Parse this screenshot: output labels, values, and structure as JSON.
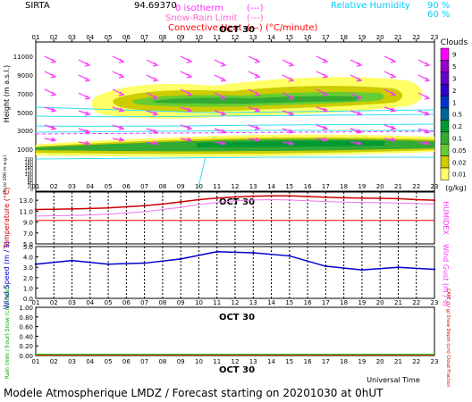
{
  "header": {
    "station": "SIRTA",
    "id": "94.69370",
    "legend_lines": [
      {
        "label": "0 isotherm",
        "sample": "(---)",
        "color": "#ff33ff"
      },
      {
        "label": "Snow-Rain Limit",
        "sample": "(---)",
        "color": "#ff66cc"
      },
      {
        "label": "Convective Heat",
        "sample": "(—) (°C/minute)",
        "color": "#ff0000"
      }
    ],
    "humidity": {
      "label": "Relative Humidity",
      "v1": "90 %",
      "v2": "60 %",
      "color": "#00ccff"
    }
  },
  "footer": "Modele Atmospherique LMDZ / Forecast starting on 20201030 at 0hUT",
  "hours": [
    "01",
    "02",
    "03",
    "04",
    "05",
    "06",
    "07",
    "08",
    "09",
    "10",
    "11",
    "12",
    "13",
    "14",
    "15",
    "16",
    "17",
    "18",
    "19",
    "20",
    "21",
    "22",
    "23"
  ],
  "date_label": "OCT 30",
  "x_axis_title": "Universal Time",
  "clouds": {
    "title": "Clouds",
    "unit": "(g/kg)",
    "levels": [
      "9",
      "5",
      "3",
      "2",
      "1",
      "0.5",
      "0.2",
      "0.1",
      "0.05",
      "0.02",
      "0.01"
    ],
    "colors": [
      "#ff00ff",
      "#9900cc",
      "#6600cc",
      "#3300cc",
      "#0033cc",
      "#006699",
      "#009933",
      "#33aa33",
      "#66cc33",
      "#cccc00",
      "#ffff66"
    ]
  },
  "chart_data": [
    {
      "type": "area",
      "name": "cloud-cross-section",
      "ylabel": "Height (m a.s.l.)",
      "ylabel2": "Up to 200 m a.g.l.",
      "yticks_upper": [
        "11000",
        "9000",
        "7000",
        "5000",
        "3000",
        "1000"
      ],
      "yticks_lower": [
        "200",
        "180",
        "160",
        "140",
        "120",
        "100",
        "80",
        "60",
        "40",
        "20",
        "0"
      ],
      "xlim": [
        1,
        23
      ],
      "layers": [
        {
          "name": "upper-cloud",
          "base_m": 4500,
          "top_m": 8000,
          "x": [
            8,
            12.5,
            17,
            21.5,
            23
          ],
          "peak_gkg": 0.1
        },
        {
          "name": "low-cloud",
          "base_m": 300,
          "top_m": 1500,
          "x": [
            1,
            23
          ],
          "peak_gkg": 0.1
        }
      ],
      "isotherm_0_m": 3000
    },
    {
      "type": "line",
      "name": "temperature",
      "ylabel": "Temperature (°C)",
      "ylabel_right": "HUMIDEX",
      "yticks": [
        "13.0",
        "11.0",
        "9.0",
        "7.0",
        "5.0"
      ],
      "ylim": [
        5.0,
        14.5
      ],
      "x": [
        1,
        2,
        3,
        4,
        5,
        6,
        7,
        8,
        9,
        10,
        11,
        12,
        13,
        14,
        15,
        16,
        17,
        18,
        19,
        20,
        21,
        22,
        23
      ],
      "series": [
        {
          "color": "#cc0000",
          "values": [
            11.3,
            11.35,
            11.4,
            11.5,
            11.6,
            11.8,
            12.0,
            12.3,
            12.7,
            13.1,
            13.4,
            13.6,
            13.75,
            13.8,
            13.8,
            13.7,
            13.55,
            13.45,
            13.4,
            13.35,
            13.3,
            13.1,
            13.0
          ]
        },
        {
          "color": "#ee77ee",
          "values": [
            10.1,
            10.15,
            10.2,
            10.3,
            10.45,
            10.65,
            10.9,
            11.3,
            11.7,
            12.2,
            12.6,
            12.9,
            13.05,
            13.1,
            13.05,
            12.9,
            12.75,
            12.65,
            12.6,
            12.55,
            12.5,
            12.4,
            12.3
          ]
        },
        {
          "color": "#ff0000",
          "values": [
            9.3,
            9.3,
            9.3,
            9.3,
            9.3,
            9.3,
            9.3,
            9.3,
            9.3,
            9.3,
            9.3,
            9.3,
            9.3,
            9.3,
            9.3,
            9.3,
            9.3,
            9.3,
            9.3,
            9.3,
            9.3,
            9.3,
            9.3
          ]
        }
      ]
    },
    {
      "type": "line",
      "name": "wind",
      "ylabel": "Wind Speed (m / s)",
      "ylabel_right": "Wind Gust (m / s)",
      "yticks": [
        "5.0",
        "4.0",
        "3.0",
        "2.0",
        "1.0",
        "0.0"
      ],
      "ylim": [
        0,
        5
      ],
      "x": [
        1,
        3,
        5,
        7,
        9,
        11,
        13,
        15,
        17,
        19,
        21,
        23
      ],
      "series": [
        {
          "color": "#0000cc",
          "values": [
            3.3,
            3.65,
            3.3,
            3.4,
            3.8,
            4.5,
            4.4,
            4.1,
            3.1,
            2.75,
            3.0,
            2.8
          ]
        }
      ]
    },
    {
      "type": "line",
      "name": "precipitation",
      "ylabel": "Rain (mm / hour) Snow (cm / hour)",
      "ylabel_right": "CAPE (J / g) Snow Depth (cm) Cloud Fraction",
      "yticks": [
        "1.00",
        "0.80",
        "0.60",
        "0.40",
        "0.20",
        "0.00"
      ],
      "ylim": [
        0,
        1
      ],
      "x": [
        1,
        23
      ],
      "series": [
        {
          "color": "#00cc00",
          "values": [
            0.02,
            0.02
          ]
        },
        {
          "color": "#cc3300",
          "values": [
            0.01,
            0.01
          ]
        }
      ]
    }
  ]
}
